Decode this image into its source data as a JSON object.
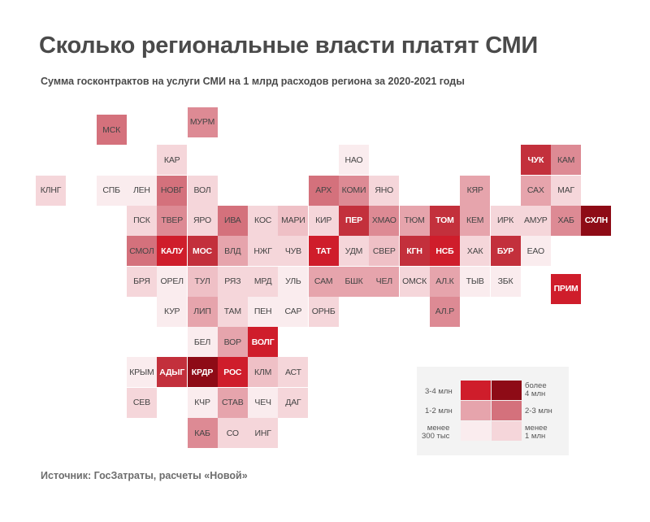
{
  "header": {
    "title": "Сколько региональные власти платят СМИ",
    "subtitle": "Сумма госконтрактов на услуги СМИ на 1 млрд расходов региона за 2020-2021 годы"
  },
  "footer": {
    "source": "Источник: ГосЗатраты, расчеты «Новой»"
  },
  "palette": {
    "1": "#faecee",
    "2": "#f5d6da",
    "3": "#efc0c6",
    "4": "#e6a4ac",
    "5": "#dd8a94",
    "6": "#d4717c",
    "7": "#cb5762",
    "8": "#c3303c",
    "9": "#cf1d2b",
    "10": "#8e0b16"
  },
  "legend": {
    "items": [
      {
        "label": "3-4 млн",
        "color": "#cf1d2b"
      },
      {
        "label": "более\n4 млн",
        "color": "#8e0b16"
      },
      {
        "label": "1-2 млн",
        "color": "#e6a4ac"
      },
      {
        "label": "2-3 млн",
        "color": "#d4717c"
      },
      {
        "label": "менее\n300 тыс",
        "color": "#faecee"
      },
      {
        "label": "менее\n1 млн",
        "color": "#f5d6da"
      }
    ]
  },
  "regions": [
    {
      "name": "МСК",
      "col": 2,
      "row": 0,
      "level": 6
    },
    {
      "name": "МУРМ",
      "col": 5,
      "row": -0.25,
      "level": 5
    },
    {
      "name": "КАР",
      "col": 4,
      "row": 1,
      "level": 2
    },
    {
      "name": "НАО",
      "col": 10,
      "row": 1,
      "level": 1
    },
    {
      "name": "ЧУК",
      "col": 16,
      "row": 1,
      "level": 8
    },
    {
      "name": "КАМ",
      "col": 17,
      "row": 1,
      "level": 5
    },
    {
      "name": "КЛНГ",
      "col": 0,
      "row": 2,
      "level": 2
    },
    {
      "name": "СПБ",
      "col": 2,
      "row": 2,
      "level": 1
    },
    {
      "name": "ЛЕН",
      "col": 3,
      "row": 2,
      "level": 1
    },
    {
      "name": "НОВГ",
      "col": 4,
      "row": 2,
      "level": 6
    },
    {
      "name": "ВОЛ",
      "col": 5,
      "row": 2,
      "level": 2
    },
    {
      "name": "АРХ",
      "col": 9,
      "row": 2,
      "level": 6
    },
    {
      "name": "КОМИ",
      "col": 10,
      "row": 2,
      "level": 5
    },
    {
      "name": "ЯНО",
      "col": 11,
      "row": 2,
      "level": 2
    },
    {
      "name": "КЯР",
      "col": 14,
      "row": 2,
      "level": 4
    },
    {
      "name": "САХ",
      "col": 16,
      "row": 2,
      "level": 4
    },
    {
      "name": "МАГ",
      "col": 17,
      "row": 2,
      "level": 2
    },
    {
      "name": "ПСК",
      "col": 3,
      "row": 3,
      "level": 2
    },
    {
      "name": "ТВЕР",
      "col": 4,
      "row": 3,
      "level": 5
    },
    {
      "name": "ЯРО",
      "col": 5,
      "row": 3,
      "level": 2
    },
    {
      "name": "ИВА",
      "col": 6,
      "row": 3,
      "level": 6
    },
    {
      "name": "КОС",
      "col": 7,
      "row": 3,
      "level": 2
    },
    {
      "name": "МАРИ",
      "col": 8,
      "row": 3,
      "level": 3
    },
    {
      "name": "КИР",
      "col": 9,
      "row": 3,
      "level": 2
    },
    {
      "name": "ПЕР",
      "col": 10,
      "row": 3,
      "level": 8
    },
    {
      "name": "ХМАО",
      "col": 11,
      "row": 3,
      "level": 5
    },
    {
      "name": "ТЮМ",
      "col": 12,
      "row": 3,
      "level": 4
    },
    {
      "name": "ТОМ",
      "col": 13,
      "row": 3,
      "level": 8
    },
    {
      "name": "КЕМ",
      "col": 14,
      "row": 3,
      "level": 4
    },
    {
      "name": "ИРК",
      "col": 15,
      "row": 3,
      "level": 2
    },
    {
      "name": "АМУР",
      "col": 16,
      "row": 3,
      "level": 2
    },
    {
      "name": "ХАБ",
      "col": 17,
      "row": 3,
      "level": 5
    },
    {
      "name": "СХЛН",
      "col": 18,
      "row": 3,
      "level": 10
    },
    {
      "name": "СМОЛ",
      "col": 3,
      "row": 4,
      "level": 6
    },
    {
      "name": "КАЛУ",
      "col": 4,
      "row": 4,
      "level": 9
    },
    {
      "name": "МОС",
      "col": 5,
      "row": 4,
      "level": 8
    },
    {
      "name": "ВЛД",
      "col": 6,
      "row": 4,
      "level": 4
    },
    {
      "name": "НЖГ",
      "col": 7,
      "row": 4,
      "level": 2
    },
    {
      "name": "ЧУВ",
      "col": 8,
      "row": 4,
      "level": 2
    },
    {
      "name": "ТАТ",
      "col": 9,
      "row": 4,
      "level": 9
    },
    {
      "name": "УДМ",
      "col": 10,
      "row": 4,
      "level": 2
    },
    {
      "name": "СВЕР",
      "col": 11,
      "row": 4,
      "level": 3
    },
    {
      "name": "КГН",
      "col": 12,
      "row": 4,
      "level": 8
    },
    {
      "name": "НСБ",
      "col": 13,
      "row": 4,
      "level": 9
    },
    {
      "name": "ХАК",
      "col": 14,
      "row": 4,
      "level": 2
    },
    {
      "name": "БУР",
      "col": 15,
      "row": 4,
      "level": 8
    },
    {
      "name": "ЕАО",
      "col": 16,
      "row": 4,
      "level": 1
    },
    {
      "name": "БРЯ",
      "col": 3,
      "row": 5,
      "level": 2
    },
    {
      "name": "ОРЕЛ",
      "col": 4,
      "row": 5,
      "level": 1
    },
    {
      "name": "ТУЛ",
      "col": 5,
      "row": 5,
      "level": 3
    },
    {
      "name": "РЯЗ",
      "col": 6,
      "row": 5,
      "level": 2
    },
    {
      "name": "МРД",
      "col": 7,
      "row": 5,
      "level": 2
    },
    {
      "name": "УЛЬ",
      "col": 8,
      "row": 5,
      "level": 1
    },
    {
      "name": "САМ",
      "col": 9,
      "row": 5,
      "level": 4
    },
    {
      "name": "БШК",
      "col": 10,
      "row": 5,
      "level": 4
    },
    {
      "name": "ЧЕЛ",
      "col": 11,
      "row": 5,
      "level": 4
    },
    {
      "name": "ОМСК",
      "col": 12,
      "row": 5,
      "level": 2
    },
    {
      "name": "АЛ.К",
      "col": 13,
      "row": 5,
      "level": 4
    },
    {
      "name": "ТЫВ",
      "col": 14,
      "row": 5,
      "level": 1
    },
    {
      "name": "ЗБК",
      "col": 15,
      "row": 5,
      "level": 1
    },
    {
      "name": "ПРИМ",
      "col": 17,
      "row": 5.25,
      "level": 9
    },
    {
      "name": "КУР",
      "col": 4,
      "row": 6,
      "level": 1
    },
    {
      "name": "ЛИП",
      "col": 5,
      "row": 6,
      "level": 4
    },
    {
      "name": "ТАМ",
      "col": 6,
      "row": 6,
      "level": 2
    },
    {
      "name": "ПЕН",
      "col": 7,
      "row": 6,
      "level": 1
    },
    {
      "name": "САР",
      "col": 8,
      "row": 6,
      "level": 1
    },
    {
      "name": "ОРНБ",
      "col": 9,
      "row": 6,
      "level": 2
    },
    {
      "name": "АЛ.Р",
      "col": 13,
      "row": 6,
      "level": 5
    },
    {
      "name": "БЕЛ",
      "col": 5,
      "row": 7,
      "level": 1
    },
    {
      "name": "ВОР",
      "col": 6,
      "row": 7,
      "level": 4
    },
    {
      "name": "ВОЛГ",
      "col": 7,
      "row": 7,
      "level": 9
    },
    {
      "name": "КРЫМ",
      "col": 3,
      "row": 8,
      "level": 1
    },
    {
      "name": "АДЫГ",
      "col": 4,
      "row": 8,
      "level": 8
    },
    {
      "name": "КРДР",
      "col": 5,
      "row": 8,
      "level": 10
    },
    {
      "name": "РОС",
      "col": 6,
      "row": 8,
      "level": 9
    },
    {
      "name": "КЛМ",
      "col": 7,
      "row": 8,
      "level": 3
    },
    {
      "name": "АСТ",
      "col": 8,
      "row": 8,
      "level": 2
    },
    {
      "name": "СЕВ",
      "col": 3,
      "row": 9,
      "level": 2
    },
    {
      "name": "КЧР",
      "col": 5,
      "row": 9,
      "level": 1
    },
    {
      "name": "СТАВ",
      "col": 6,
      "row": 9,
      "level": 4
    },
    {
      "name": "ЧЕЧ",
      "col": 7,
      "row": 9,
      "level": 1
    },
    {
      "name": "ДАГ",
      "col": 8,
      "row": 9,
      "level": 2
    },
    {
      "name": "КАБ",
      "col": 5,
      "row": 10,
      "level": 5
    },
    {
      "name": "СО",
      "col": 6,
      "row": 10,
      "level": 2
    },
    {
      "name": "ИНГ",
      "col": 7,
      "row": 10,
      "level": 2
    }
  ]
}
